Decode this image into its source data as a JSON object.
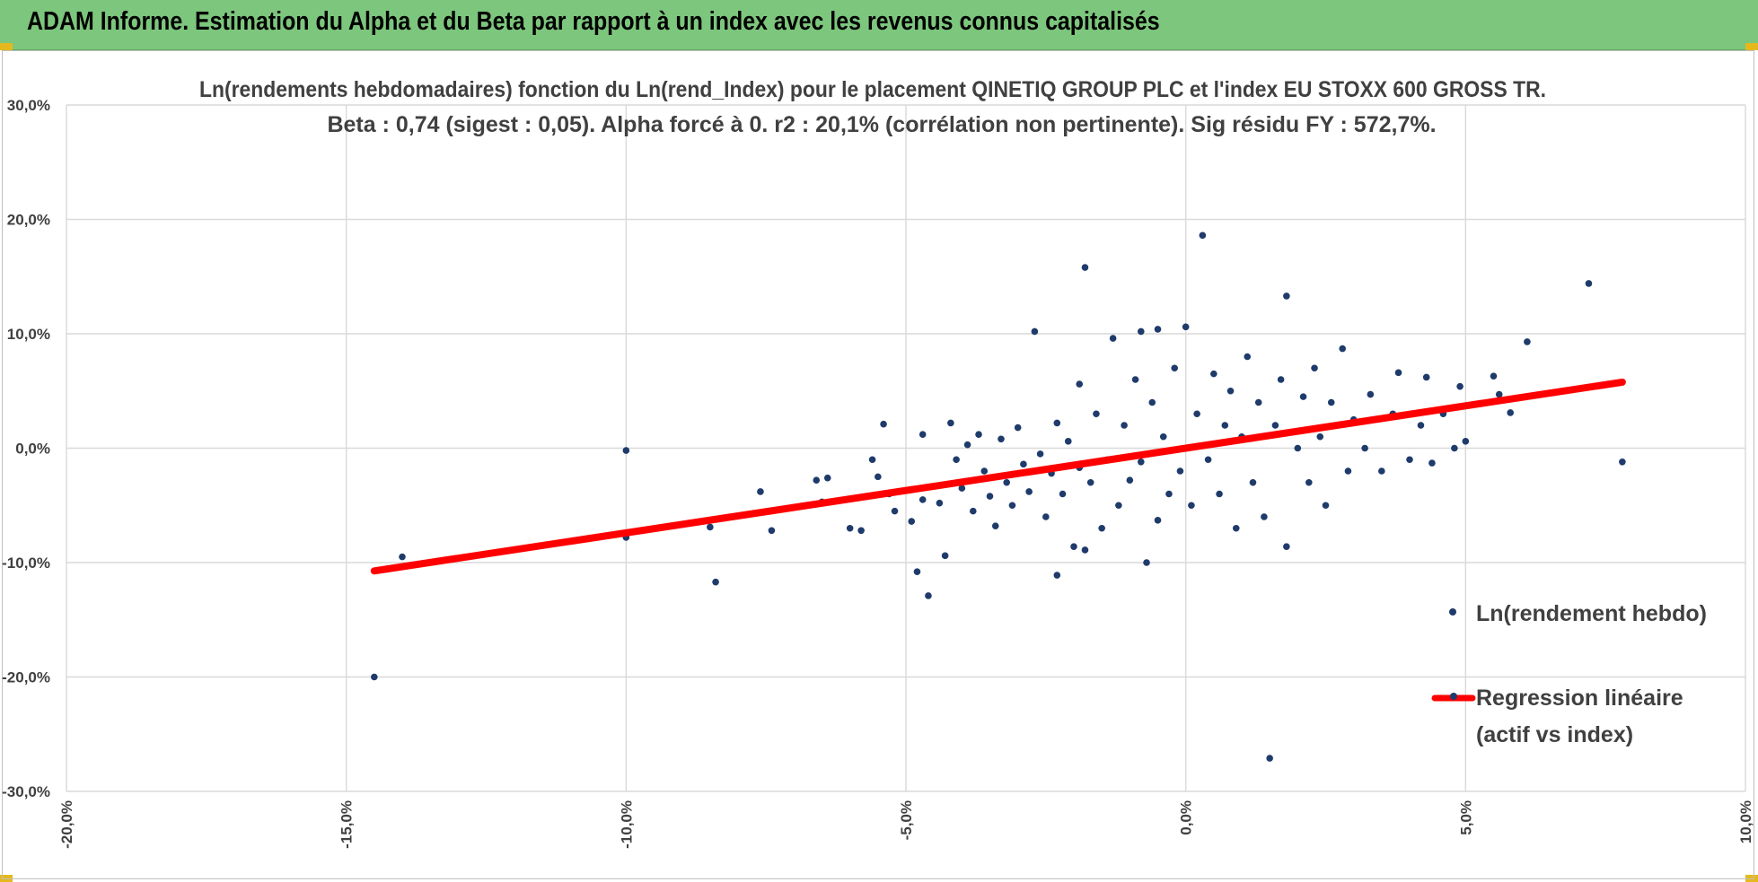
{
  "banner": {
    "title": "ADAM Informe. Estimation du Alpha et du Beta par rapport à un index avec les revenus connus capitalisés",
    "bg_color": "#7dc67d",
    "corner_color": "#e5b81e"
  },
  "chart_data": {
    "type": "scatter",
    "title_lines": [
      "Ln(rendements hebdomadaires) fonction du Ln(rend_Index) pour le placement QINETIQ GROUP PLC et l'index EU STOXX 600 GROSS TR.",
      "Beta : 0,74 (sigest : 0,05).  Alpha forcé à 0. r2 : 20,1% (corrélation non pertinente). Sig résidu FY : 572,7%."
    ],
    "xlim": [
      -0.2,
      0.1
    ],
    "ylim": [
      -0.3,
      0.3
    ],
    "x_ticks": [
      -0.2,
      -0.15,
      -0.1,
      -0.05,
      0.0,
      0.05,
      0.1
    ],
    "x_tick_labels": [
      "-20,0%",
      "-15,0%",
      "-10,0%",
      "-5,0%",
      "0,0%",
      "5,0%",
      "10,0%"
    ],
    "y_ticks": [
      0.3,
      0.2,
      0.1,
      0.0,
      -0.1,
      -0.2,
      -0.3
    ],
    "y_tick_labels": [
      "30,0%",
      "20,0%",
      "10,0%",
      "0,0%",
      "-10,0%",
      "-20,0%",
      "-30,0%"
    ],
    "grid": true,
    "legend_position": "right",
    "series": [
      {
        "name": "Ln(rendement hebdo)",
        "kind": "scatter",
        "color": "#1f3b6b",
        "points": [
          [
            -0.145,
            -0.2
          ],
          [
            -0.14,
            -0.095
          ],
          [
            -0.1,
            -0.002
          ],
          [
            -0.1,
            -0.078
          ],
          [
            -0.084,
            -0.117
          ],
          [
            -0.085,
            -0.069
          ],
          [
            -0.076,
            -0.038
          ],
          [
            -0.074,
            -0.072
          ],
          [
            -0.066,
            -0.028
          ],
          [
            -0.065,
            -0.047
          ],
          [
            -0.064,
            -0.026
          ],
          [
            -0.06,
            -0.07
          ],
          [
            -0.058,
            -0.072
          ],
          [
            -0.056,
            -0.01
          ],
          [
            -0.055,
            -0.025
          ],
          [
            -0.054,
            0.021
          ],
          [
            -0.053,
            -0.04
          ],
          [
            -0.052,
            -0.055
          ],
          [
            -0.049,
            -0.064
          ],
          [
            -0.048,
            -0.108
          ],
          [
            -0.047,
            -0.045
          ],
          [
            -0.047,
            0.012
          ],
          [
            -0.046,
            -0.129
          ],
          [
            -0.044,
            -0.048
          ],
          [
            -0.043,
            -0.094
          ],
          [
            -0.042,
            0.022
          ],
          [
            -0.041,
            -0.01
          ],
          [
            -0.04,
            -0.035
          ],
          [
            -0.039,
            0.003
          ],
          [
            -0.038,
            -0.055
          ],
          [
            -0.037,
            0.012
          ],
          [
            -0.036,
            -0.02
          ],
          [
            -0.035,
            -0.042
          ],
          [
            -0.034,
            -0.068
          ],
          [
            -0.033,
            0.008
          ],
          [
            -0.032,
            -0.03
          ],
          [
            -0.031,
            -0.05
          ],
          [
            -0.03,
            0.018
          ],
          [
            -0.029,
            -0.014
          ],
          [
            -0.028,
            -0.038
          ],
          [
            -0.027,
            0.102
          ],
          [
            -0.026,
            -0.005
          ],
          [
            -0.025,
            -0.06
          ],
          [
            -0.024,
            -0.022
          ],
          [
            -0.023,
            -0.111
          ],
          [
            -0.023,
            0.022
          ],
          [
            -0.022,
            -0.04
          ],
          [
            -0.021,
            0.006
          ],
          [
            -0.02,
            -0.086
          ],
          [
            -0.019,
            -0.017
          ],
          [
            -0.019,
            0.056
          ],
          [
            -0.018,
            -0.089
          ],
          [
            -0.018,
            0.158
          ],
          [
            -0.017,
            -0.03
          ],
          [
            -0.016,
            0.03
          ],
          [
            -0.015,
            -0.07
          ],
          [
            -0.014,
            -0.01
          ],
          [
            -0.013,
            0.096
          ],
          [
            -0.012,
            -0.05
          ],
          [
            -0.011,
            0.02
          ],
          [
            -0.01,
            -0.028
          ],
          [
            -0.009,
            0.06
          ],
          [
            -0.008,
            -0.012
          ],
          [
            -0.008,
            0.102
          ],
          [
            -0.007,
            -0.1
          ],
          [
            -0.006,
            0.04
          ],
          [
            -0.005,
            -0.063
          ],
          [
            -0.005,
            0.104
          ],
          [
            -0.004,
            0.01
          ],
          [
            -0.003,
            -0.04
          ],
          [
            -0.002,
            0.07
          ],
          [
            -0.001,
            -0.02
          ],
          [
            0.0,
            0.106
          ],
          [
            0.001,
            -0.05
          ],
          [
            0.002,
            0.03
          ],
          [
            0.003,
            0.186
          ],
          [
            0.004,
            -0.01
          ],
          [
            0.005,
            0.065
          ],
          [
            0.006,
            -0.04
          ],
          [
            0.007,
            0.02
          ],
          [
            0.008,
            0.05
          ],
          [
            0.009,
            -0.07
          ],
          [
            0.01,
            0.01
          ],
          [
            0.011,
            0.08
          ],
          [
            0.012,
            -0.03
          ],
          [
            0.013,
            0.04
          ],
          [
            0.014,
            -0.06
          ],
          [
            0.015,
            -0.271
          ],
          [
            0.016,
            0.02
          ],
          [
            0.017,
            0.06
          ],
          [
            0.018,
            -0.086
          ],
          [
            0.018,
            0.133
          ],
          [
            0.02,
            0.0
          ],
          [
            0.021,
            0.045
          ],
          [
            0.022,
            -0.03
          ],
          [
            0.023,
            0.07
          ],
          [
            0.024,
            0.01
          ],
          [
            0.025,
            -0.05
          ],
          [
            0.026,
            0.04
          ],
          [
            0.028,
            0.087
          ],
          [
            0.029,
            -0.02
          ],
          [
            0.03,
            0.025
          ],
          [
            0.032,
            0.0
          ],
          [
            0.033,
            0.047
          ],
          [
            0.035,
            -0.02
          ],
          [
            0.037,
            0.03
          ],
          [
            0.038,
            0.066
          ],
          [
            0.04,
            -0.01
          ],
          [
            0.042,
            0.02
          ],
          [
            0.043,
            0.062
          ],
          [
            0.044,
            -0.013
          ],
          [
            0.046,
            0.03
          ],
          [
            0.048,
            0.0
          ],
          [
            0.049,
            0.054
          ],
          [
            0.05,
            0.006
          ],
          [
            0.055,
            0.063
          ],
          [
            0.056,
            0.047
          ],
          [
            0.058,
            0.031
          ],
          [
            0.061,
            0.093
          ],
          [
            0.072,
            0.144
          ],
          [
            0.078,
            -0.012
          ]
        ]
      },
      {
        "name": "Regression linéaire (actif vs index)",
        "legend_lines": [
          "Regression linéaire",
          "(actif vs index)"
        ],
        "kind": "line",
        "color": "#ff0000",
        "beta": 0.74,
        "alpha": 0,
        "x_range": [
          -0.145,
          0.078
        ]
      }
    ]
  }
}
